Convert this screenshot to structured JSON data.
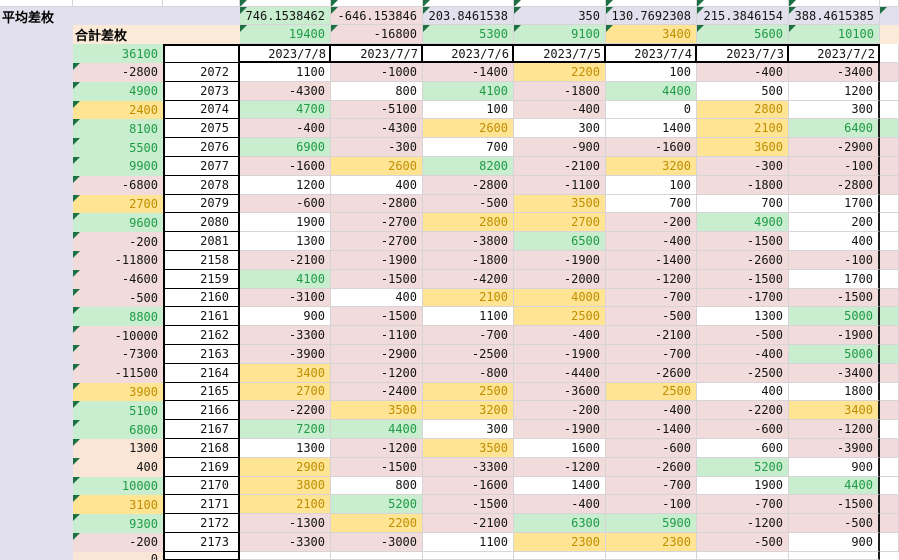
{
  "header": {
    "avg_label": "平均差枚",
    "total_label": "合計差枚",
    "grand_total": "36100"
  },
  "dates": [
    "2023/7/8",
    "2023/7/7",
    "2023/7/6",
    "2023/7/5",
    "2023/7/4",
    "2023/7/3",
    "2023/7/2"
  ],
  "avg_row": {
    "values": [
      "746.1538462",
      "-646.153846",
      "203.8461538",
      "350",
      "130.7692308",
      "215.3846154",
      "388.4615385"
    ],
    "bg": [
      "green",
      "pink",
      "lav",
      "lav",
      "lav",
      "lav",
      "lav"
    ]
  },
  "total_row": {
    "values": [
      19400,
      -16800,
      5300,
      9100,
      3400,
      5600,
      10100
    ]
  },
  "rows": [
    {
      "sum": -2800,
      "machine": 2072,
      "values": [
        1100,
        -1000,
        -1400,
        2200,
        100,
        -400,
        -3400
      ],
      "strip": "pink"
    },
    {
      "sum": 4900,
      "machine": 2073,
      "values": [
        -4300,
        800,
        4100,
        -1800,
        4400,
        500,
        1200
      ],
      "strip": "white"
    },
    {
      "sum": 2400,
      "machine": 2074,
      "values": [
        4700,
        -5100,
        100,
        -400,
        0,
        2800,
        300
      ],
      "strip": "white"
    },
    {
      "sum": 8100,
      "machine": 2075,
      "values": [
        -400,
        -4300,
        2600,
        300,
        1400,
        2100,
        6400
      ],
      "strip": "green"
    },
    {
      "sum": 5500,
      "machine": 2076,
      "values": [
        6900,
        -300,
        700,
        -900,
        -1600,
        3600,
        -2900
      ],
      "strip": "pink"
    },
    {
      "sum": 9900,
      "machine": 2077,
      "values": [
        -1600,
        2600,
        8200,
        -2100,
        3200,
        -300,
        -100
      ],
      "strip": "pink"
    },
    {
      "sum": -6800,
      "machine": 2078,
      "values": [
        1200,
        400,
        -2800,
        -1100,
        100,
        -1800,
        -2800
      ],
      "strip": "pink"
    },
    {
      "sum": 2700,
      "machine": 2079,
      "values": [
        -600,
        -2800,
        -500,
        3500,
        700,
        700,
        1700
      ],
      "strip": "white"
    },
    {
      "sum": 9600,
      "machine": 2080,
      "values": [
        1900,
        -2700,
        2800,
        2700,
        -200,
        4900,
        200
      ],
      "strip": "white"
    },
    {
      "sum": -200,
      "machine": 2081,
      "values": [
        1300,
        -2700,
        -3800,
        6500,
        -400,
        -1500,
        400
      ],
      "strip": "white"
    },
    {
      "sum": -11800,
      "machine": 2158,
      "values": [
        -2100,
        -1900,
        -1800,
        -1900,
        -1400,
        -2600,
        -100
      ],
      "strip": "pink"
    },
    {
      "sum": -4600,
      "machine": 2159,
      "values": [
        4100,
        -1500,
        -4200,
        -2000,
        -1200,
        -1500,
        1700
      ],
      "strip": "white"
    },
    {
      "sum": -500,
      "machine": 2160,
      "values": [
        -3100,
        400,
        2100,
        4000,
        -700,
        -1700,
        -1500
      ],
      "strip": "pink"
    },
    {
      "sum": 8800,
      "machine": 2161,
      "values": [
        900,
        -1500,
        1100,
        2500,
        -500,
        1300,
        5000
      ],
      "strip": "green"
    },
    {
      "sum": -10000,
      "machine": 2162,
      "values": [
        -3300,
        -1100,
        -700,
        -400,
        -2100,
        -500,
        -1900
      ],
      "strip": "pink"
    },
    {
      "sum": -7300,
      "machine": 2163,
      "values": [
        -3900,
        -2900,
        -2500,
        -1900,
        -700,
        -400,
        5000
      ],
      "strip": "green"
    },
    {
      "sum": -11500,
      "machine": 2164,
      "values": [
        3400,
        -1200,
        -800,
        -4400,
        -2600,
        -2500,
        -3400
      ],
      "strip": "pink"
    },
    {
      "sum": 3900,
      "machine": 2165,
      "values": [
        2700,
        -2400,
        2500,
        -3600,
        2500,
        400,
        1800
      ],
      "strip": "white"
    },
    {
      "sum": 5100,
      "machine": 2166,
      "values": [
        -2200,
        3500,
        3200,
        -200,
        -400,
        -2200,
        3400
      ],
      "strip": "pink"
    },
    {
      "sum": 6800,
      "machine": 2167,
      "values": [
        7200,
        4400,
        300,
        -1900,
        -1400,
        -600,
        -1200
      ],
      "strip": "white"
    },
    {
      "sum": 1300,
      "machine": 2168,
      "values": [
        1300,
        -1200,
        3500,
        1600,
        -600,
        600,
        -3900
      ],
      "strip": "pink"
    },
    {
      "sum": 400,
      "machine": 2169,
      "values": [
        2900,
        -1500,
        -3300,
        -1200,
        -2600,
        5200,
        900
      ],
      "strip": "white"
    },
    {
      "sum": 10000,
      "machine": 2170,
      "values": [
        3800,
        800,
        -1600,
        1400,
        -700,
        1900,
        4400
      ],
      "strip": "white"
    },
    {
      "sum": 3100,
      "machine": 2171,
      "values": [
        2100,
        5200,
        -1500,
        -400,
        -100,
        -700,
        -1500
      ],
      "strip": "pink"
    },
    {
      "sum": 9300,
      "machine": 2172,
      "values": [
        -1300,
        2200,
        -2100,
        6300,
        5900,
        -1200,
        -500
      ],
      "strip": "pink"
    },
    {
      "sum": -200,
      "machine": 2173,
      "values": [
        -3300,
        -3000,
        1100,
        2300,
        2300,
        -500,
        900
      ],
      "strip": "white"
    }
  ],
  "partial_bottom_row": {
    "sum_fragment": "0"
  },
  "colors": {
    "lav": "#e3e0ee",
    "peach": "#fcead9",
    "peachD": "#fbe5d6",
    "greenBg": "#c9edcf",
    "greenTx": "#1e9c45",
    "pinkBg": "#f2dcdb",
    "yellowBg": "#ffe494",
    "orangeTx": "#bf8f00",
    "grid": "#d7d3d7",
    "tri": "#1d7044",
    "border": "#000000"
  }
}
